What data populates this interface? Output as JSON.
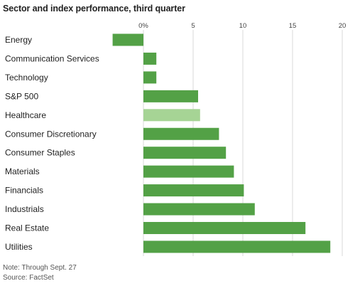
{
  "chart_data": {
    "type": "bar",
    "orientation": "horizontal",
    "title": "Sector and index performance, third quarter",
    "unit": "%",
    "categories": [
      "Energy",
      "Communication Services",
      "Technology",
      "S&P 500",
      "Healthcare",
      "Consumer Discretionary",
      "Consumer Staples",
      "Materials",
      "Financials",
      "Industrials",
      "Real Estate",
      "Utilities"
    ],
    "values": [
      -3.1,
      1.3,
      1.3,
      5.5,
      5.7,
      7.6,
      8.3,
      9.1,
      10.1,
      11.2,
      16.3,
      18.8
    ],
    "highlight_category": "Healthcare",
    "colors": {
      "bar": "#53a146",
      "highlight": "#a6d495",
      "grid": "#d9d9d9"
    },
    "xlim": [
      -3.5,
      20
    ],
    "xticks": [
      {
        "value": 0,
        "label": "0%"
      },
      {
        "value": 5,
        "label": "5"
      },
      {
        "value": 10,
        "label": "10"
      },
      {
        "value": 15,
        "label": "15"
      },
      {
        "value": 20,
        "label": "20"
      }
    ],
    "grid": true,
    "note": "Note: Through Sept. 27",
    "source": "Source: FactSet"
  }
}
